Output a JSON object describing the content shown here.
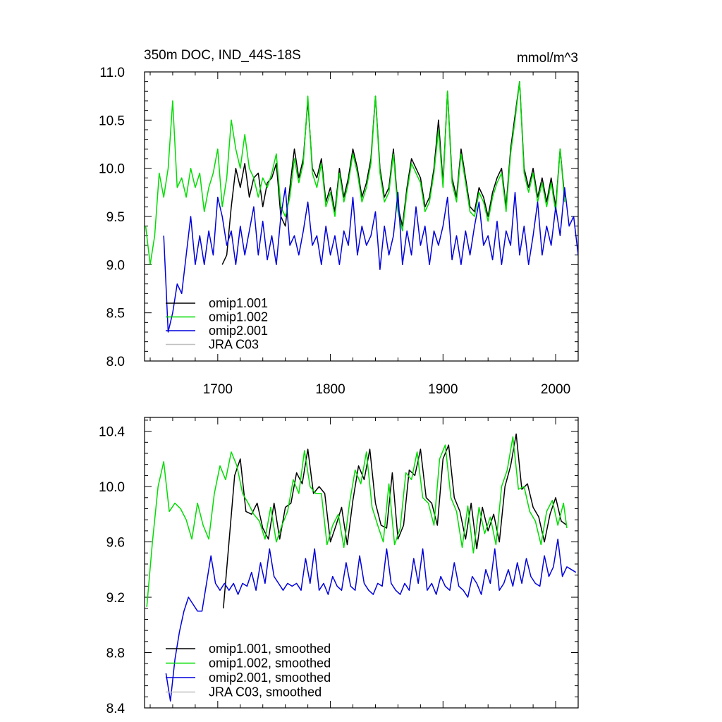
{
  "figure": {
    "title_left": "350m DOC, IND_44S-18S",
    "title_right": "mmol/m^3"
  },
  "chart_data": [
    {
      "type": "line",
      "xlim": [
        1635,
        2020
      ],
      "ylim": [
        8.0,
        11.0
      ],
      "x_ticks": [
        1700,
        1800,
        1900,
        2000
      ],
      "y_ticks": [
        8.0,
        8.5,
        9.0,
        9.5,
        10.0,
        10.5,
        11.0
      ],
      "y_tick_labels": [
        "8.0",
        "8.5",
        "9.0",
        "9.5",
        "10.0",
        "10.5",
        "11.0"
      ],
      "grid": false,
      "legend_position": "lower-left",
      "series": [
        {
          "name": "omip1.001",
          "color": "#000000",
          "x": [
            1704,
            1708,
            1712,
            1716,
            1720,
            1724,
            1728,
            1732,
            1736,
            1740,
            1744,
            1748,
            1752,
            1756,
            1760,
            1764,
            1768,
            1772,
            1776,
            1780,
            1784,
            1788,
            1792,
            1796,
            1800,
            1804,
            1808,
            1812,
            1816,
            1820,
            1824,
            1828,
            1832,
            1836,
            1840,
            1844,
            1848,
            1852,
            1856,
            1860,
            1864,
            1868,
            1872,
            1876,
            1880,
            1884,
            1888,
            1892,
            1896,
            1900,
            1904,
            1908,
            1912,
            1916,
            1920,
            1924,
            1928,
            1932,
            1936,
            1940,
            1944,
            1948,
            1952,
            1956,
            1960,
            1964,
            1968,
            1972,
            1976,
            1980,
            1984,
            1988,
            1992,
            1996,
            2000,
            2004,
            2008
          ],
          "y": [
            9.0,
            9.1,
            9.6,
            10.0,
            9.8,
            10.05,
            9.7,
            9.9,
            9.95,
            9.6,
            9.85,
            9.9,
            10.05,
            9.5,
            9.4,
            9.8,
            10.2,
            9.9,
            10.1,
            10.7,
            10.0,
            9.9,
            10.1,
            9.65,
            9.8,
            9.55,
            10.0,
            9.7,
            9.9,
            10.2,
            10.0,
            9.7,
            9.85,
            10.1,
            10.75,
            10.0,
            9.7,
            9.8,
            10.2,
            9.6,
            9.4,
            9.8,
            10.1,
            10.0,
            9.9,
            9.6,
            9.7,
            10.0,
            10.5,
            9.85,
            10.8,
            9.9,
            9.7,
            10.2,
            9.9,
            9.6,
            9.55,
            9.8,
            9.7,
            9.5,
            9.75,
            9.9,
            10.0,
            9.6,
            10.2,
            10.55,
            10.9,
            10.0,
            9.8,
            10.0,
            9.7,
            9.9,
            9.65,
            9.9,
            9.6,
            10.2,
            9.7
          ]
        },
        {
          "name": "omip1.002",
          "color": "#00dd00",
          "x": [
            1636,
            1640,
            1644,
            1648,
            1652,
            1656,
            1660,
            1664,
            1668,
            1672,
            1676,
            1680,
            1684,
            1688,
            1692,
            1696,
            1700,
            1704,
            1708,
            1712,
            1716,
            1720,
            1724,
            1728,
            1732,
            1736,
            1740,
            1744,
            1748,
            1752,
            1756,
            1760,
            1764,
            1768,
            1772,
            1776,
            1780,
            1784,
            1788,
            1792,
            1796,
            1800,
            1804,
            1808,
            1812,
            1816,
            1820,
            1824,
            1828,
            1832,
            1836,
            1840,
            1844,
            1848,
            1852,
            1856,
            1860,
            1864,
            1868,
            1872,
            1876,
            1880,
            1884,
            1888,
            1892,
            1896,
            1900,
            1904,
            1908,
            1912,
            1916,
            1920,
            1924,
            1928,
            1932,
            1936,
            1940,
            1944,
            1948,
            1952,
            1956,
            1960,
            1964,
            1968,
            1972,
            1976,
            1980,
            1984,
            1988,
            1992,
            1996,
            2000,
            2004,
            2008
          ],
          "y": [
            9.4,
            9.0,
            9.3,
            9.95,
            9.7,
            10.0,
            10.7,
            9.8,
            9.9,
            9.7,
            10.0,
            9.8,
            9.95,
            9.55,
            9.8,
            9.95,
            10.2,
            9.6,
            9.9,
            10.5,
            10.2,
            10.0,
            10.35,
            10.0,
            9.9,
            9.7,
            9.9,
            9.8,
            9.95,
            10.15,
            9.6,
            9.5,
            9.7,
            10.1,
            9.85,
            10.05,
            10.75,
            9.95,
            9.8,
            10.05,
            9.6,
            9.75,
            9.5,
            9.95,
            9.65,
            9.85,
            10.15,
            9.95,
            9.65,
            9.8,
            10.05,
            10.75,
            9.95,
            9.65,
            9.75,
            10.15,
            9.55,
            9.35,
            9.75,
            10.05,
            9.95,
            9.85,
            9.55,
            9.65,
            9.95,
            10.4,
            9.8,
            10.8,
            9.85,
            9.65,
            10.15,
            9.85,
            9.55,
            9.5,
            9.75,
            9.65,
            9.45,
            9.7,
            9.85,
            9.95,
            9.55,
            10.15,
            10.5,
            10.9,
            9.95,
            9.75,
            9.95,
            9.65,
            9.85,
            9.6,
            9.85,
            9.55,
            10.2,
            9.65
          ]
        },
        {
          "name": "omip2.001",
          "color": "#0000dd",
          "x": [
            1652,
            1656,
            1660,
            1664,
            1668,
            1672,
            1676,
            1680,
            1684,
            1688,
            1692,
            1696,
            1700,
            1704,
            1708,
            1712,
            1716,
            1720,
            1724,
            1728,
            1732,
            1736,
            1740,
            1744,
            1748,
            1752,
            1756,
            1760,
            1764,
            1768,
            1772,
            1776,
            1780,
            1784,
            1788,
            1792,
            1796,
            1800,
            1804,
            1808,
            1812,
            1816,
            1820,
            1824,
            1828,
            1832,
            1836,
            1840,
            1844,
            1848,
            1852,
            1856,
            1860,
            1864,
            1868,
            1872,
            1876,
            1880,
            1884,
            1888,
            1892,
            1896,
            1900,
            1904,
            1908,
            1912,
            1916,
            1920,
            1924,
            1928,
            1932,
            1936,
            1940,
            1944,
            1948,
            1952,
            1956,
            1960,
            1964,
            1968,
            1972,
            1976,
            1980,
            1984,
            1988,
            1992,
            1996,
            2000,
            2004,
            2008,
            2012,
            2016,
            2020
          ],
          "y": [
            9.3,
            8.3,
            8.5,
            8.8,
            8.7,
            9.1,
            9.5,
            9.0,
            9.3,
            9.0,
            9.35,
            9.1,
            9.7,
            9.5,
            9.2,
            9.35,
            9.0,
            9.4,
            9.1,
            9.35,
            9.6,
            9.1,
            9.45,
            9.05,
            9.3,
            9.0,
            9.5,
            9.8,
            9.2,
            9.3,
            9.1,
            9.35,
            9.65,
            9.2,
            9.3,
            9.0,
            9.4,
            9.1,
            9.3,
            9.0,
            9.35,
            9.2,
            9.7,
            9.1,
            9.4,
            9.2,
            9.3,
            9.55,
            8.95,
            9.4,
            9.1,
            9.3,
            9.75,
            9.0,
            9.35,
            9.1,
            9.6,
            9.2,
            9.4,
            9.0,
            9.35,
            9.2,
            9.4,
            9.7,
            9.05,
            9.3,
            9.0,
            9.35,
            9.1,
            9.4,
            9.65,
            9.2,
            9.3,
            9.05,
            9.45,
            9.0,
            9.35,
            9.2,
            9.75,
            9.1,
            9.4,
            9.0,
            9.3,
            9.65,
            9.1,
            9.4,
            9.2,
            9.6,
            9.3,
            9.8,
            9.4,
            9.5,
            9.1
          ]
        },
        {
          "name": "JRA C03",
          "color": "#c0c0c0",
          "x": [],
          "y": []
        }
      ]
    },
    {
      "type": "line",
      "xlim": [
        1635,
        2020
      ],
      "ylim": [
        8.4,
        10.5
      ],
      "x_ticks": [
        1700,
        1800,
        1900,
        2000
      ],
      "y_ticks": [
        8.4,
        8.8,
        9.2,
        9.6,
        10.0,
        10.4
      ],
      "y_tick_labels": [
        "8.4",
        "8.8",
        "9.2",
        "9.6",
        "10.0",
        "10.4"
      ],
      "grid": false,
      "legend_position": "lower-left",
      "series": [
        {
          "name": "omip1.001, smoothed",
          "color": "#000000",
          "x": [
            1705,
            1710,
            1715,
            1720,
            1725,
            1730,
            1735,
            1740,
            1745,
            1750,
            1755,
            1760,
            1765,
            1770,
            1775,
            1780,
            1785,
            1790,
            1795,
            1800,
            1805,
            1810,
            1815,
            1820,
            1825,
            1830,
            1835,
            1840,
            1845,
            1850,
            1855,
            1860,
            1865,
            1870,
            1875,
            1880,
            1885,
            1890,
            1895,
            1900,
            1905,
            1910,
            1915,
            1920,
            1925,
            1930,
            1935,
            1940,
            1945,
            1950,
            1955,
            1960,
            1965,
            1970,
            1975,
            1980,
            1985,
            1990,
            1995,
            2000,
            2005,
            2010
          ],
          "y": [
            9.12,
            9.6,
            10.08,
            10.2,
            9.82,
            9.8,
            9.88,
            9.7,
            9.62,
            9.88,
            9.62,
            9.85,
            9.88,
            10.1,
            10.02,
            10.27,
            9.95,
            10.0,
            9.95,
            9.6,
            9.72,
            9.85,
            9.58,
            9.9,
            10.15,
            10.05,
            10.27,
            9.88,
            9.72,
            9.7,
            10.1,
            9.62,
            9.72,
            10.12,
            10.08,
            10.27,
            9.92,
            9.88,
            9.72,
            10.2,
            10.3,
            9.92,
            9.82,
            9.62,
            9.88,
            9.55,
            9.85,
            9.68,
            9.8,
            9.6,
            10.0,
            10.15,
            10.38,
            9.98,
            10.02,
            9.85,
            9.78,
            9.6,
            9.8,
            9.92,
            9.75,
            9.72
          ]
        },
        {
          "name": "omip1.002, smoothed",
          "color": "#00dd00",
          "x": [
            1637,
            1642,
            1647,
            1652,
            1657,
            1662,
            1667,
            1672,
            1677,
            1682,
            1687,
            1692,
            1697,
            1702,
            1707,
            1712,
            1717,
            1722,
            1727,
            1732,
            1737,
            1742,
            1747,
            1752,
            1757,
            1762,
            1767,
            1772,
            1777,
            1782,
            1787,
            1792,
            1797,
            1802,
            1807,
            1812,
            1817,
            1822,
            1827,
            1832,
            1837,
            1842,
            1847,
            1852,
            1857,
            1862,
            1867,
            1872,
            1877,
            1882,
            1887,
            1892,
            1897,
            1902,
            1907,
            1912,
            1917,
            1922,
            1927,
            1932,
            1937,
            1942,
            1947,
            1952,
            1957,
            1962,
            1967,
            1972,
            1977,
            1982,
            1987,
            1992,
            1997,
            2002,
            2007,
            2010
          ],
          "y": [
            9.13,
            9.6,
            10.0,
            10.18,
            9.82,
            9.88,
            9.84,
            9.76,
            9.62,
            9.88,
            9.72,
            9.62,
            9.95,
            10.15,
            10.05,
            10.25,
            10.15,
            9.95,
            9.88,
            9.8,
            9.75,
            9.62,
            9.85,
            9.6,
            9.72,
            9.82,
            10.05,
            9.95,
            10.26,
            10.0,
            9.95,
            9.95,
            9.58,
            9.72,
            9.8,
            9.56,
            9.88,
            10.12,
            10.02,
            10.25,
            9.85,
            9.72,
            9.6,
            10.02,
            9.58,
            9.7,
            10.1,
            10.05,
            10.25,
            9.92,
            9.88,
            9.72,
            10.2,
            10.3,
            9.92,
            9.82,
            9.56,
            9.86,
            9.52,
            9.85,
            9.66,
            9.78,
            9.58,
            10.0,
            10.12,
            10.36,
            9.98,
            10.0,
            9.82,
            9.75,
            9.58,
            9.82,
            9.9,
            9.72,
            9.88,
            9.7
          ]
        },
        {
          "name": "omip2.001, smoothed",
          "color": "#0000dd",
          "x": [
            1654,
            1658,
            1662,
            1666,
            1670,
            1674,
            1678,
            1682,
            1686,
            1690,
            1694,
            1698,
            1702,
            1706,
            1710,
            1714,
            1718,
            1722,
            1726,
            1730,
            1734,
            1738,
            1742,
            1746,
            1750,
            1754,
            1758,
            1762,
            1766,
            1770,
            1774,
            1778,
            1782,
            1786,
            1790,
            1794,
            1798,
            1802,
            1806,
            1810,
            1814,
            1818,
            1822,
            1826,
            1830,
            1834,
            1838,
            1842,
            1846,
            1850,
            1854,
            1858,
            1862,
            1866,
            1870,
            1874,
            1878,
            1882,
            1886,
            1890,
            1894,
            1898,
            1902,
            1906,
            1910,
            1914,
            1918,
            1922,
            1926,
            1930,
            1934,
            1938,
            1942,
            1946,
            1950,
            1954,
            1958,
            1962,
            1966,
            1970,
            1974,
            1978,
            1982,
            1986,
            1990,
            1994,
            1998,
            2002,
            2006,
            2010,
            2014,
            2018
          ],
          "y": [
            8.65,
            8.45,
            8.75,
            8.95,
            9.1,
            9.2,
            9.15,
            9.1,
            9.1,
            9.3,
            9.5,
            9.3,
            9.25,
            9.3,
            9.25,
            9.3,
            9.22,
            9.3,
            9.28,
            9.38,
            9.25,
            9.45,
            9.3,
            9.55,
            9.35,
            9.3,
            9.25,
            9.3,
            9.28,
            9.3,
            9.25,
            9.48,
            9.3,
            9.55,
            9.25,
            9.3,
            9.22,
            9.35,
            9.28,
            9.25,
            9.45,
            9.28,
            9.25,
            9.5,
            9.3,
            9.25,
            9.22,
            9.3,
            9.28,
            9.55,
            9.3,
            9.25,
            9.22,
            9.3,
            9.25,
            9.48,
            9.3,
            9.55,
            9.25,
            9.3,
            9.22,
            9.35,
            9.28,
            9.25,
            9.45,
            9.28,
            9.25,
            9.2,
            9.35,
            9.3,
            9.22,
            9.4,
            9.3,
            9.55,
            9.25,
            9.3,
            9.4,
            9.28,
            9.45,
            9.3,
            9.48,
            9.35,
            9.3,
            9.28,
            9.5,
            9.35,
            9.42,
            9.62,
            9.35,
            9.42,
            9.4,
            9.38
          ]
        },
        {
          "name": "JRA C03, smoothed",
          "color": "#c0c0c0",
          "x": [],
          "y": []
        }
      ]
    }
  ]
}
